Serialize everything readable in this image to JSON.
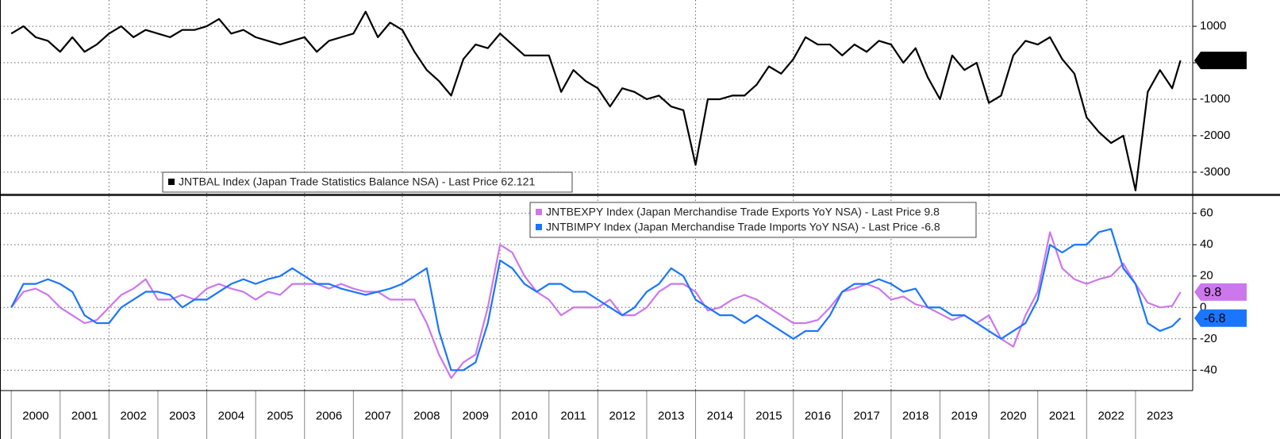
{
  "chart_data": [
    {
      "type": "line",
      "x": [
        2000,
        2000.25,
        2000.5,
        2000.75,
        2001,
        2001.25,
        2001.5,
        2001.75,
        2002,
        2002.25,
        2002.5,
        2002.75,
        2003,
        2003.25,
        2003.5,
        2003.75,
        2004,
        2004.25,
        2004.5,
        2004.75,
        2005,
        2005.25,
        2005.5,
        2005.75,
        2006,
        2006.25,
        2006.5,
        2006.75,
        2007,
        2007.25,
        2007.5,
        2007.75,
        2008,
        2008.25,
        2008.5,
        2008.75,
        2009,
        2009.25,
        2009.5,
        2009.75,
        2010,
        2010.25,
        2010.5,
        2010.75,
        2011,
        2011.25,
        2011.5,
        2011.75,
        2012,
        2012.25,
        2012.5,
        2012.75,
        2013,
        2013.25,
        2013.5,
        2013.75,
        2014,
        2014.25,
        2014.5,
        2014.75,
        2015,
        2015.25,
        2015.5,
        2015.75,
        2016,
        2016.25,
        2016.5,
        2016.75,
        2017,
        2017.25,
        2017.5,
        2017.75,
        2018,
        2018.25,
        2018.5,
        2018.75,
        2019,
        2019.25,
        2019.5,
        2019.75,
        2020,
        2020.25,
        2020.5,
        2020.75,
        2021,
        2021.25,
        2021.5,
        2021.75,
        2022,
        2022.25,
        2022.5,
        2022.75,
        2023,
        2023.25,
        2023.5,
        2023.75,
        2023.92
      ],
      "series": [
        {
          "name": "JNTBAL Index (Japan Trade Statistics Balance NSA) - Last Price 62.121",
          "color": "#000000",
          "last_price": 62.121,
          "values": [
            800,
            1000,
            700,
            600,
            300,
            700,
            300,
            500,
            800,
            1000,
            700,
            900,
            800,
            700,
            900,
            900,
            1000,
            1200,
            800,
            900,
            700,
            600,
            500,
            600,
            700,
            300,
            600,
            700,
            800,
            1400,
            700,
            1100,
            900,
            300,
            -200,
            -500,
            -900,
            100,
            500,
            400,
            800,
            500,
            200,
            200,
            200,
            -800,
            -200,
            -500,
            -700,
            -1200,
            -700,
            -800,
            -1000,
            -900,
            -1200,
            -1300,
            -2800,
            -1000,
            -1000,
            -900,
            -900,
            -600,
            -100,
            -300,
            100,
            700,
            500,
            500,
            200,
            500,
            300,
            600,
            500,
            0,
            400,
            -400,
            -1000,
            200,
            -200,
            0,
            -1100,
            -900,
            200,
            600,
            500,
            700,
            100,
            -300,
            -1500,
            -1900,
            -2200,
            -2000,
            -3500,
            -800,
            -200,
            -700,
            62.121
          ]
        }
      ],
      "xlim": [
        1999.77,
        2024.17
      ],
      "ylim": [
        -3590,
        1720
      ],
      "yticks": [
        -3000,
        -2000,
        -1000,
        0,
        1000
      ],
      "grid": true
    },
    {
      "type": "line",
      "x": [
        2000,
        2000.25,
        2000.5,
        2000.75,
        2001,
        2001.25,
        2001.5,
        2001.75,
        2002,
        2002.25,
        2002.5,
        2002.75,
        2003,
        2003.25,
        2003.5,
        2003.75,
        2004,
        2004.25,
        2004.5,
        2004.75,
        2005,
        2005.25,
        2005.5,
        2005.75,
        2006,
        2006.25,
        2006.5,
        2006.75,
        2007,
        2007.25,
        2007.5,
        2007.75,
        2008,
        2008.25,
        2008.5,
        2008.75,
        2009,
        2009.25,
        2009.5,
        2009.75,
        2010,
        2010.25,
        2010.5,
        2010.75,
        2011,
        2011.25,
        2011.5,
        2011.75,
        2012,
        2012.25,
        2012.5,
        2012.75,
        2013,
        2013.25,
        2013.5,
        2013.75,
        2014,
        2014.25,
        2014.5,
        2014.75,
        2015,
        2015.25,
        2015.5,
        2015.75,
        2016,
        2016.25,
        2016.5,
        2016.75,
        2017,
        2017.25,
        2017.5,
        2017.75,
        2018,
        2018.25,
        2018.5,
        2018.75,
        2019,
        2019.25,
        2019.5,
        2019.75,
        2020,
        2020.25,
        2020.5,
        2020.75,
        2021,
        2021.25,
        2021.5,
        2021.75,
        2022,
        2022.25,
        2022.5,
        2022.75,
        2023,
        2023.25,
        2023.5,
        2023.75,
        2023.92
      ],
      "series": [
        {
          "name": "JNTBEXPY Index (Japan Merchandise Trade Exports YoY NSA) - Last Price 9.8",
          "color": "#cc77ee",
          "last_price": 9.8,
          "values": [
            0,
            10,
            12,
            8,
            0,
            -5,
            -10,
            -8,
            0,
            8,
            12,
            18,
            5,
            5,
            8,
            5,
            12,
            15,
            12,
            10,
            5,
            10,
            8,
            15,
            15,
            15,
            12,
            15,
            12,
            10,
            10,
            5,
            5,
            5,
            -10,
            -30,
            -45,
            -35,
            -30,
            0,
            40,
            35,
            20,
            10,
            5,
            -5,
            0,
            0,
            0,
            5,
            -5,
            -5,
            0,
            10,
            15,
            15,
            10,
            -2,
            0,
            5,
            8,
            5,
            0,
            -5,
            -10,
            -10,
            -8,
            0,
            10,
            12,
            15,
            12,
            5,
            7,
            2,
            0,
            -4,
            -8,
            -5,
            -10,
            -5,
            -20,
            -25,
            -5,
            10,
            48,
            25,
            18,
            15,
            18,
            20,
            28,
            15,
            3,
            0,
            1,
            9.8
          ]
        },
        {
          "name": "JNTBIMPY Index (Japan Merchandise Trade Imports YoY NSA) - Last Price -6.8",
          "color": "#1a75ff",
          "last_price": -6.8,
          "values": [
            0,
            15,
            15,
            18,
            15,
            10,
            -5,
            -10,
            -10,
            0,
            5,
            10,
            10,
            8,
            0,
            5,
            5,
            10,
            15,
            18,
            15,
            18,
            20,
            25,
            20,
            15,
            15,
            12,
            10,
            8,
            10,
            12,
            15,
            20,
            25,
            -15,
            -40,
            -40,
            -35,
            -10,
            30,
            25,
            15,
            10,
            15,
            15,
            10,
            10,
            5,
            0,
            -5,
            0,
            10,
            15,
            25,
            20,
            5,
            0,
            -5,
            -5,
            -10,
            -5,
            -10,
            -15,
            -20,
            -15,
            -15,
            -5,
            10,
            15,
            15,
            18,
            15,
            10,
            12,
            0,
            0,
            -5,
            -5,
            -10,
            -15,
            -20,
            -15,
            -10,
            5,
            40,
            35,
            40,
            40,
            48,
            50,
            25,
            15,
            -10,
            -15,
            -12,
            -6.8
          ]
        }
      ],
      "xlim": [
        1999.77,
        2024.17
      ],
      "xticks": [
        2000,
        2001,
        2002,
        2003,
        2004,
        2005,
        2006,
        2007,
        2008,
        2009,
        2010,
        2011,
        2012,
        2013,
        2014,
        2015,
        2016,
        2017,
        2018,
        2019,
        2020,
        2021,
        2022,
        2023
      ],
      "ylim": [
        -53,
        71
      ],
      "yticks": [
        -40,
        -20,
        0,
        20,
        40,
        60
      ],
      "grid": true
    }
  ]
}
